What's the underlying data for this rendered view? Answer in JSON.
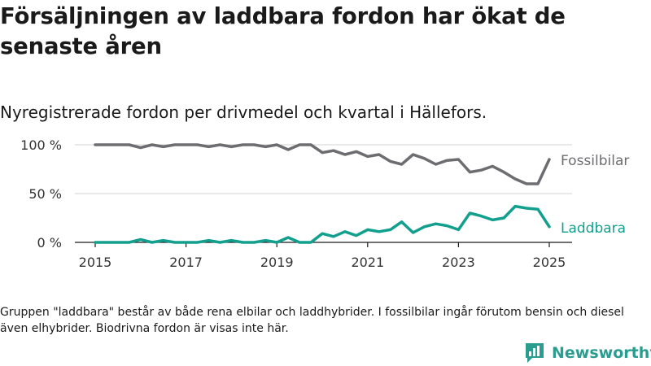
{
  "header": {
    "title": "Försäljningen av laddbara fordon har ökat de senaste åren",
    "subtitle": "Nyregistrerade fordon per drivmedel och kvartal i Hällefors."
  },
  "footnote": "Gruppen \"laddbara\" består av både rena elbilar och laddhybrider. I fossilbilar ingår förutom bensin och diesel även elhybrider. Biodrivna fordon är visas inte här.",
  "brand": {
    "name": "Newsworthy",
    "icon": "newsworthy-logo-icon",
    "color": "#2a9d8f"
  },
  "chart_data": {
    "type": "line",
    "title": "",
    "xlabel": "",
    "ylabel": "",
    "x": [
      "2015Q1",
      "2015Q2",
      "2015Q3",
      "2015Q4",
      "2016Q1",
      "2016Q2",
      "2016Q3",
      "2016Q4",
      "2017Q1",
      "2017Q2",
      "2017Q3",
      "2017Q4",
      "2018Q1",
      "2018Q2",
      "2018Q3",
      "2018Q4",
      "2019Q1",
      "2019Q2",
      "2019Q3",
      "2019Q4",
      "2020Q1",
      "2020Q2",
      "2020Q3",
      "2020Q4",
      "2021Q1",
      "2021Q2",
      "2021Q3",
      "2021Q4",
      "2022Q1",
      "2022Q2",
      "2022Q3",
      "2022Q4",
      "2023Q1",
      "2023Q2",
      "2023Q3",
      "2023Q4",
      "2024Q1",
      "2024Q2",
      "2024Q3",
      "2024Q4",
      "2025Q1"
    ],
    "xticks": [
      {
        "x": "2015Q1",
        "label": "2015"
      },
      {
        "x": "2017Q1",
        "label": "2017"
      },
      {
        "x": "2019Q1",
        "label": "2019"
      },
      {
        "x": "2021Q1",
        "label": "2021"
      },
      {
        "x": "2023Q1",
        "label": "2023"
      },
      {
        "x": "2025Q1",
        "label": "2025"
      }
    ],
    "yticks": [
      {
        "value": 0,
        "label": "0 %"
      },
      {
        "value": 50,
        "label": "50 %"
      },
      {
        "value": 100,
        "label": "100 %"
      }
    ],
    "ylim": [
      0,
      100
    ],
    "grid": true,
    "legend": "inline-right",
    "series": [
      {
        "name": "Fossilbilar",
        "color": "#6d6c70",
        "values": [
          100,
          100,
          100,
          100,
          97,
          100,
          98,
          100,
          100,
          100,
          98,
          100,
          98,
          100,
          100,
          98,
          100,
          95,
          100,
          100,
          92,
          94,
          90,
          93,
          88,
          90,
          83,
          80,
          90,
          86,
          80,
          84,
          85,
          72,
          74,
          78,
          72,
          65,
          60,
          60,
          85
        ]
      },
      {
        "name": "Laddbara",
        "color": "#129f8d",
        "values": [
          0,
          0,
          0,
          0,
          3,
          0,
          2,
          0,
          0,
          0,
          2,
          0,
          2,
          0,
          0,
          2,
          0,
          5,
          0,
          0,
          9,
          6,
          11,
          7,
          13,
          11,
          13,
          21,
          10,
          16,
          19,
          17,
          13,
          30,
          27,
          23,
          25,
          37,
          35,
          34,
          16
        ]
      }
    ]
  }
}
